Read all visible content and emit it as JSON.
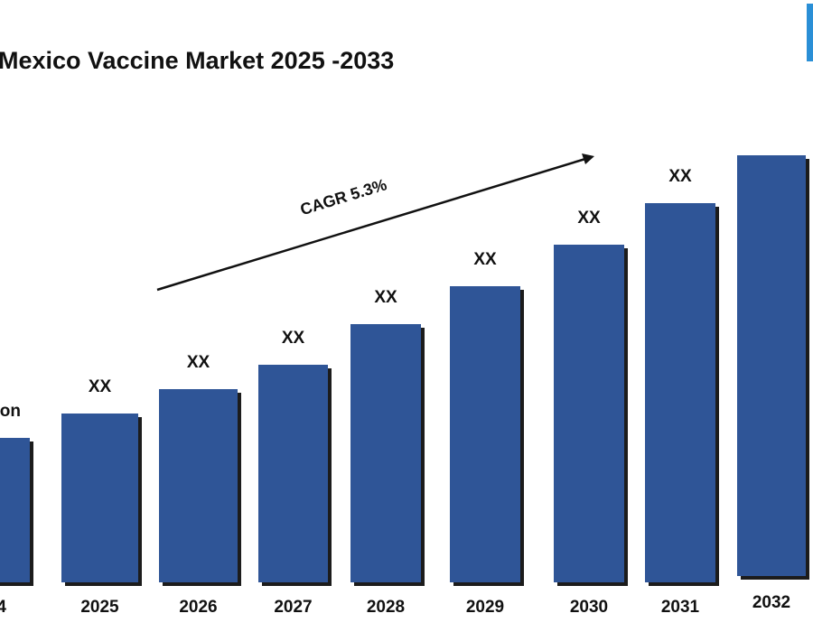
{
  "chart_data": {
    "type": "bar",
    "title": "Mexico Vaccine Market 2025 -2033",
    "annotation": "CAGR 5.3%",
    "categories": [
      "4",
      "2025",
      "2026",
      "2027",
      "2028",
      "2029",
      "2030",
      "2031",
      "2032"
    ],
    "values": [
      16,
      18.7,
      21.4,
      24.1,
      28.6,
      32.8,
      37.4,
      42,
      46.6
    ],
    "value_labels": [
      "Billion",
      "XX",
      "XX",
      "XX",
      "XX",
      "XX",
      "XX",
      "XX",
      null
    ],
    "color": "#2f5597"
  }
}
